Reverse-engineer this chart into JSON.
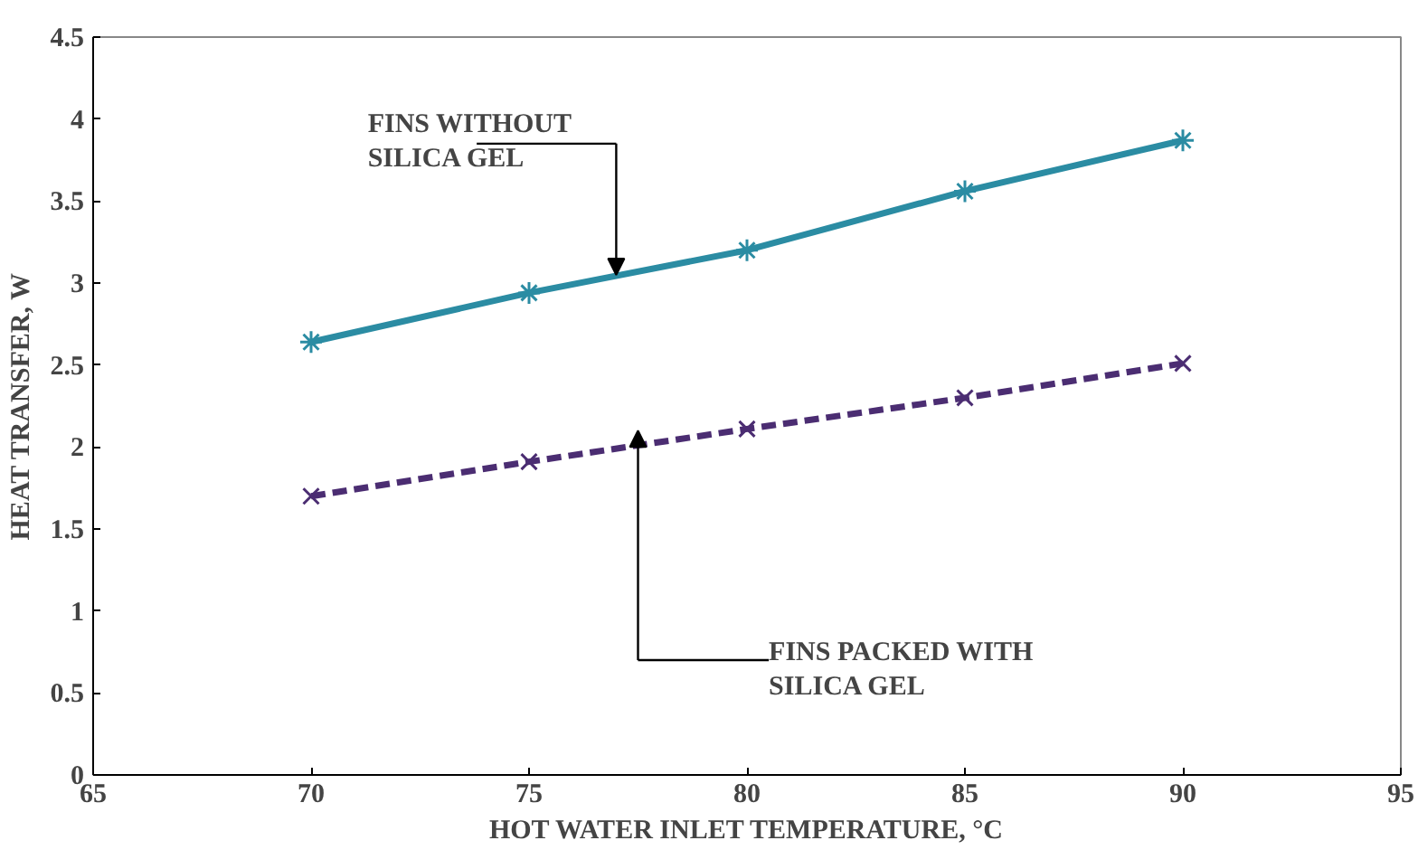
{
  "chart_data": {
    "type": "line",
    "xlabel": "HOT WATER INLET TEMPERATURE, °C",
    "ylabel": "HEAT TRANSFER, W",
    "x": [
      70,
      75,
      80,
      85,
      90
    ],
    "series": [
      {
        "color": "#2b8ca3",
        "values": [
          2.64,
          2.94,
          3.2,
          3.56,
          3.87
        ],
        "marker": "cross",
        "line_style": "solid"
      },
      {
        "color": "#4b2d72",
        "values": [
          1.7,
          1.91,
          2.11,
          2.3,
          2.51
        ],
        "marker": "cross",
        "line_style": "dashed"
      }
    ],
    "annotations": [
      "FINS WITHOUT\nSILICA GEL",
      "FINS PACKED WITH\nSILICA GEL"
    ],
    "xlim": [
      65,
      95
    ],
    "xticks": [
      65,
      70,
      75,
      80,
      85,
      90,
      95
    ],
    "ylim": [
      0,
      4.5
    ],
    "yticks": [
      0,
      0.5,
      1,
      1.5,
      2,
      2.5,
      3,
      3.5,
      4,
      4.5
    ],
    "grid": false
  }
}
